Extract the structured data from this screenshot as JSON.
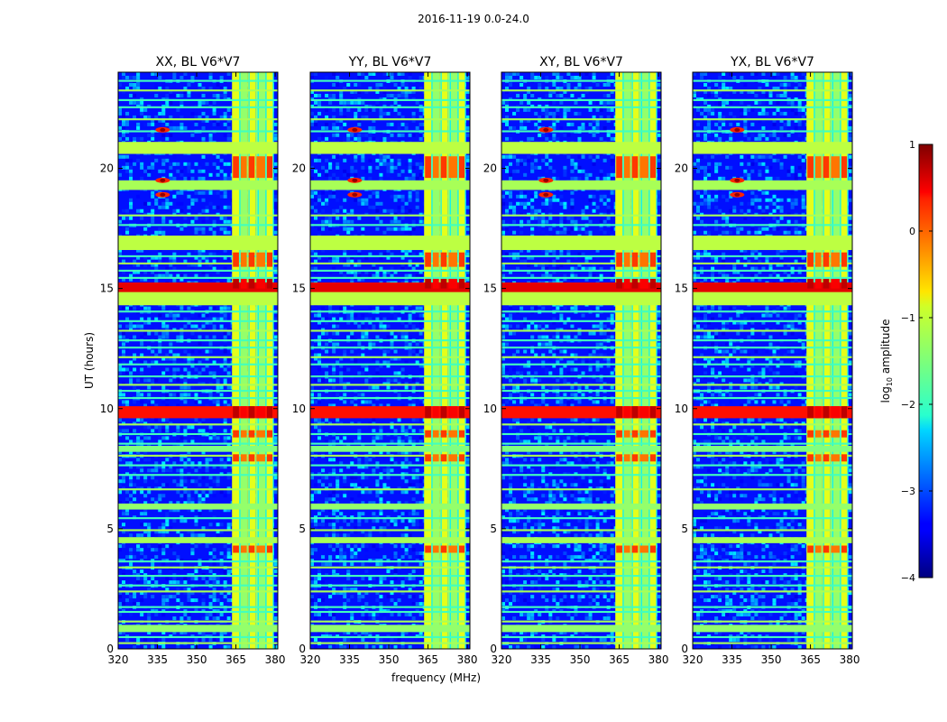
{
  "figure": {
    "suptitle": "2016-11-19 0.0-24.0"
  },
  "chart_data": [
    {
      "type": "heatmap",
      "title": "XX, BL V6*V7",
      "xlabel": "",
      "ylabel": "UT (hours)",
      "xlim": [
        320,
        381
      ],
      "ylim": [
        0,
        24
      ],
      "xticks": [
        "320",
        "335",
        "350",
        "365",
        "380"
      ],
      "yticks": [
        "0",
        "5",
        "10",
        "15",
        "20"
      ],
      "description_levels": {
        "background": -3.3,
        "rfi_band_freq_mhz": [
          359,
          381
        ],
        "strong_rows_hours": [
          9.9,
          15.0
        ]
      }
    },
    {
      "type": "heatmap",
      "title": "YY, BL V6*V7",
      "xlabel": "frequency (MHz)",
      "ylabel": "",
      "xlim": [
        320,
        381
      ],
      "ylim": [
        0,
        24
      ],
      "xticks": [
        "320",
        "335",
        "350",
        "365",
        "380"
      ],
      "yticks": [
        "0",
        "5",
        "10",
        "15",
        "20"
      ]
    },
    {
      "type": "heatmap",
      "title": "XY, BL V6*V7",
      "xlabel": "",
      "ylabel": "",
      "xlim": [
        320,
        381
      ],
      "ylim": [
        0,
        24
      ],
      "xticks": [
        "320",
        "335",
        "350",
        "365",
        "380"
      ],
      "yticks": [
        "0",
        "5",
        "10",
        "15",
        "20"
      ]
    },
    {
      "type": "heatmap",
      "title": "YX, BL V6*V7",
      "xlabel": "",
      "ylabel": "",
      "xlim": [
        320,
        381
      ],
      "ylim": [
        0,
        24
      ],
      "xticks": [
        "320",
        "335",
        "350",
        "365",
        "380"
      ],
      "yticks": [
        "0",
        "5",
        "10",
        "15",
        "20"
      ]
    }
  ],
  "colorbar": {
    "label": "log10 amplitude",
    "label_base": "log",
    "label_sub": "10",
    "label_rest": " amplitude",
    "range": [
      -4,
      1
    ],
    "ticks": [
      "1",
      "0",
      "−1",
      "−2",
      "−3",
      "−4"
    ],
    "tick_values": [
      1,
      0,
      -1,
      -2,
      -3,
      -4
    ],
    "colormap": "jet"
  }
}
